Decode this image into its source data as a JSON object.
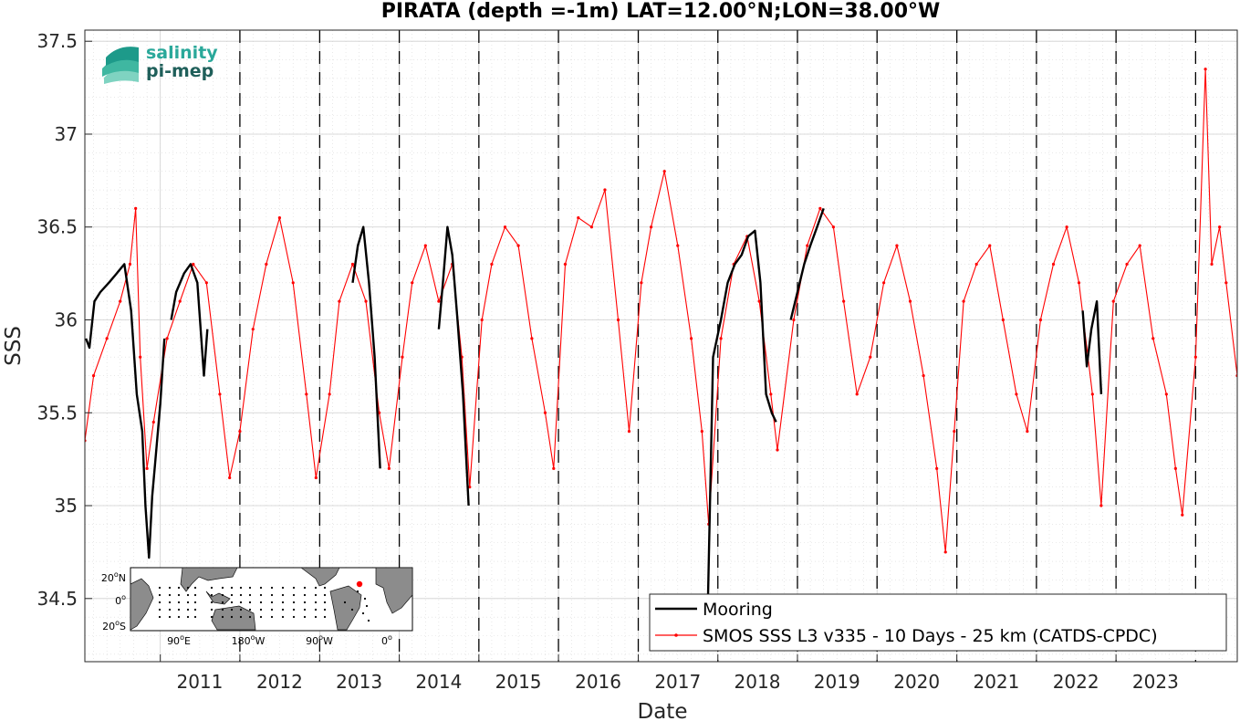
{
  "chart_data": {
    "type": "line",
    "title": "PIRATA (depth =-1m) LAT=12.00°N;LON=38.00°W",
    "xlabel": "Date",
    "ylabel": "SSS",
    "x_range": [
      "2010-01-20",
      "2024-07-10"
    ],
    "ylim": [
      34.16,
      37.56
    ],
    "x_ticks": [
      "2011",
      "2012",
      "2013",
      "2014",
      "2015",
      "2016",
      "2017",
      "2018",
      "2019",
      "2020",
      "2021",
      "2022",
      "2023"
    ],
    "y_ticks": [
      34.5,
      35,
      35.5,
      36,
      36.5,
      37,
      37.5
    ],
    "y_tick_labels": [
      "34.5",
      "35",
      "35.5",
      "36",
      "36.5",
      "37",
      "37.5"
    ],
    "grid": true,
    "year_dividers": true,
    "legend_position": "bottom-right",
    "series": [
      {
        "name": "Mooring",
        "color": "#000000",
        "points": [
          [
            "2010-01-25",
            35.9
          ],
          [
            "2010-02-10",
            35.85
          ],
          [
            "2010-03-05",
            36.1
          ],
          [
            "2010-04-01",
            36.15
          ],
          [
            "2010-05-10",
            36.2
          ],
          [
            "2010-06-15",
            36.25
          ],
          [
            "2010-07-20",
            36.3
          ],
          [
            "2010-08-20",
            36.05
          ],
          [
            "2010-09-15",
            35.6
          ],
          [
            "2010-10-10",
            35.4
          ],
          [
            "2010-10-25",
            35.0
          ],
          [
            "2010-11-10",
            34.72
          ],
          [
            "2010-11-25",
            35.05
          ],
          [
            "2010-12-10",
            35.25
          ],
          [
            "2011-01-01",
            35.55
          ],
          [
            "2011-01-20",
            35.9
          ],
          null,
          [
            "2011-02-20",
            36.0
          ],
          [
            "2011-03-15",
            36.15
          ],
          [
            "2011-04-20",
            36.25
          ],
          [
            "2011-05-20",
            36.3
          ],
          [
            "2011-06-20",
            36.2
          ],
          [
            "2011-07-20",
            35.7
          ],
          [
            "2011-08-05",
            35.95
          ],
          null,
          [
            "2013-06-01",
            36.2
          ],
          [
            "2013-06-25",
            36.4
          ],
          [
            "2013-07-20",
            36.5
          ],
          [
            "2013-08-15",
            36.2
          ],
          [
            "2013-09-10",
            35.8
          ],
          [
            "2013-10-05",
            35.2
          ],
          null,
          [
            "2014-07-01",
            35.95
          ],
          [
            "2014-07-20",
            36.2
          ],
          [
            "2014-08-10",
            36.5
          ],
          [
            "2014-09-01",
            36.35
          ],
          [
            "2014-09-25",
            36.0
          ],
          [
            "2014-10-20",
            35.6
          ],
          [
            "2014-11-15",
            35.0
          ],
          null,
          [
            "2017-11-15",
            34.4
          ],
          [
            "2017-12-10",
            35.8
          ],
          [
            "2018-01-15",
            36.0
          ],
          [
            "2018-02-15",
            36.2
          ],
          [
            "2018-03-20",
            36.3
          ],
          [
            "2018-04-20",
            36.35
          ],
          [
            "2018-05-20",
            36.45
          ],
          [
            "2018-06-20",
            36.48
          ],
          [
            "2018-07-15",
            36.2
          ],
          [
            "2018-08-10",
            35.6
          ],
          [
            "2018-09-05",
            35.5
          ],
          [
            "2018-09-25",
            35.45
          ],
          null,
          [
            "2018-12-01",
            36.0
          ],
          [
            "2019-01-01",
            36.15
          ],
          [
            "2019-02-01",
            36.3
          ],
          [
            "2019-03-01",
            36.4
          ],
          [
            "2019-04-01",
            36.5
          ],
          [
            "2019-05-01",
            36.6
          ],
          null,
          [
            "2022-08-01",
            36.05
          ],
          [
            "2022-08-20",
            35.75
          ],
          [
            "2022-09-10",
            35.95
          ],
          [
            "2022-10-05",
            36.1
          ],
          [
            "2022-10-25",
            35.6
          ]
        ]
      },
      {
        "name": "SMOS SSS L3 v335 - 10 Days - 25 km (CATDS-CPDC)",
        "color": "#ff0000",
        "points": [
          [
            "2010-01-20",
            35.35
          ],
          [
            "2010-03-01",
            35.7
          ],
          [
            "2010-05-01",
            35.9
          ],
          [
            "2010-07-01",
            36.1
          ],
          [
            "2010-08-15",
            36.3
          ],
          [
            "2010-09-10",
            36.6
          ],
          [
            "2010-10-01",
            35.8
          ],
          [
            "2010-11-01",
            35.2
          ],
          [
            "2010-12-01",
            35.45
          ],
          [
            "2011-02-01",
            35.9
          ],
          [
            "2011-04-01",
            36.1
          ],
          [
            "2011-06-01",
            36.3
          ],
          [
            "2011-08-01",
            36.2
          ],
          [
            "2011-10-01",
            35.6
          ],
          [
            "2011-11-15",
            35.15
          ],
          [
            "2012-01-01",
            35.4
          ],
          [
            "2012-03-01",
            35.95
          ],
          [
            "2012-05-01",
            36.3
          ],
          [
            "2012-07-01",
            36.55
          ],
          [
            "2012-09-01",
            36.2
          ],
          [
            "2012-11-01",
            35.6
          ],
          [
            "2012-12-15",
            35.15
          ],
          [
            "2013-02-15",
            35.6
          ],
          [
            "2013-04-01",
            36.1
          ],
          [
            "2013-06-01",
            36.3
          ],
          [
            "2013-08-01",
            36.1
          ],
          [
            "2013-10-01",
            35.5
          ],
          [
            "2013-11-15",
            35.2
          ],
          [
            "2014-01-15",
            35.8
          ],
          [
            "2014-03-01",
            36.2
          ],
          [
            "2014-05-01",
            36.4
          ],
          [
            "2014-07-01",
            36.1
          ],
          [
            "2014-09-01",
            36.3
          ],
          [
            "2014-10-15",
            35.8
          ],
          [
            "2014-11-20",
            35.1
          ],
          [
            "2015-01-15",
            36.0
          ],
          [
            "2015-03-01",
            36.3
          ],
          [
            "2015-05-01",
            36.5
          ],
          [
            "2015-07-01",
            36.4
          ],
          [
            "2015-09-01",
            35.9
          ],
          [
            "2015-11-01",
            35.5
          ],
          [
            "2015-12-10",
            35.2
          ],
          [
            "2016-02-01",
            36.3
          ],
          [
            "2016-04-01",
            36.55
          ],
          [
            "2016-06-01",
            36.5
          ],
          [
            "2016-08-01",
            36.7
          ],
          [
            "2016-10-01",
            36.0
          ],
          [
            "2016-11-20",
            35.4
          ],
          [
            "2017-01-15",
            36.2
          ],
          [
            "2017-03-01",
            36.5
          ],
          [
            "2017-05-01",
            36.8
          ],
          [
            "2017-07-01",
            36.4
          ],
          [
            "2017-09-01",
            35.9
          ],
          [
            "2017-10-20",
            35.4
          ],
          [
            "2017-11-20",
            34.9
          ],
          [
            "2018-01-15",
            35.9
          ],
          [
            "2018-03-15",
            36.3
          ],
          [
            "2018-05-15",
            36.45
          ],
          [
            "2018-07-10",
            36.1
          ],
          [
            "2018-09-01",
            35.6
          ],
          [
            "2018-10-01",
            35.3
          ],
          [
            "2018-12-15",
            36.0
          ],
          [
            "2019-02-15",
            36.4
          ],
          [
            "2019-04-15",
            36.6
          ],
          [
            "2019-06-15",
            36.5
          ],
          [
            "2019-08-01",
            36.1
          ],
          [
            "2019-10-01",
            35.6
          ],
          [
            "2019-12-01",
            35.8
          ],
          [
            "2020-02-01",
            36.2
          ],
          [
            "2020-04-01",
            36.4
          ],
          [
            "2020-06-01",
            36.1
          ],
          [
            "2020-08-01",
            35.7
          ],
          [
            "2020-10-01",
            35.2
          ],
          [
            "2020-11-10",
            34.75
          ],
          [
            "2020-12-20",
            35.4
          ],
          [
            "2021-02-01",
            36.1
          ],
          [
            "2021-04-01",
            36.3
          ],
          [
            "2021-06-01",
            36.4
          ],
          [
            "2021-08-01",
            36.0
          ],
          [
            "2021-10-01",
            35.6
          ],
          [
            "2021-11-20",
            35.4
          ],
          [
            "2022-01-20",
            36.0
          ],
          [
            "2022-03-20",
            36.3
          ],
          [
            "2022-05-20",
            36.5
          ],
          [
            "2022-07-15",
            36.2
          ],
          [
            "2022-09-15",
            35.6
          ],
          [
            "2022-10-25",
            35.0
          ],
          [
            "2022-12-20",
            36.1
          ],
          [
            "2023-02-20",
            36.3
          ],
          [
            "2023-04-20",
            36.4
          ],
          [
            "2023-06-20",
            35.9
          ],
          [
            "2023-08-20",
            35.6
          ],
          [
            "2023-10-01",
            35.2
          ],
          [
            "2023-11-01",
            34.95
          ],
          [
            "2024-01-01",
            35.8
          ],
          [
            "2024-02-15",
            37.35
          ],
          [
            "2024-03-15",
            36.3
          ],
          [
            "2024-04-20",
            36.5
          ],
          [
            "2024-05-20",
            36.2
          ],
          [
            "2024-07-10",
            35.7
          ]
        ]
      }
    ]
  },
  "logo": {
    "line1": "salinity",
    "line2": "pi-mep"
  },
  "inset_map": {
    "y_ticks": [
      {
        "deg": "20",
        "hem": "N"
      },
      {
        "deg": "0",
        "hem": ""
      },
      {
        "deg": "20",
        "hem": "S"
      }
    ],
    "x_ticks": [
      {
        "deg": "90",
        "hem": "E"
      },
      {
        "deg": "180",
        "hem": "W"
      },
      {
        "deg": "90",
        "hem": "W"
      },
      {
        "deg": "0",
        "hem": ""
      }
    ],
    "highlight_color": "#ff0000"
  }
}
